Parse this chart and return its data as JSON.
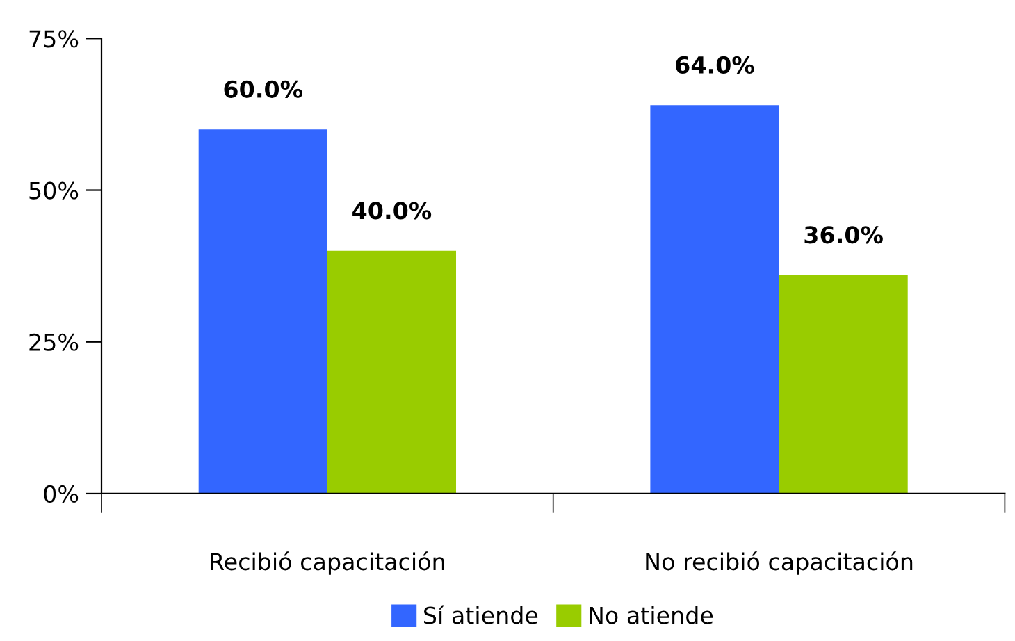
{
  "chart_data": {
    "type": "bar",
    "categories": [
      "Recibió capacitación",
      "No recibió capacitación"
    ],
    "series": [
      {
        "name": "Sí atiende",
        "color": "#3366ff",
        "values": [
          60,
          64
        ],
        "value_labels": [
          "60.0%",
          "64.0%"
        ]
      },
      {
        "name": "No atiende",
        "color": "#99cc00",
        "values": [
          40,
          36
        ],
        "value_labels": [
          "40.0%",
          "36.0%"
        ]
      }
    ],
    "ylim": [
      0,
      75
    ],
    "yticks": [
      {
        "value": 0,
        "label": "0%"
      },
      {
        "value": 25,
        "label": "25%"
      },
      {
        "value": 50,
        "label": "50%"
      },
      {
        "value": 75,
        "label": "75%"
      }
    ],
    "grid": false,
    "legend": "bottom"
  }
}
